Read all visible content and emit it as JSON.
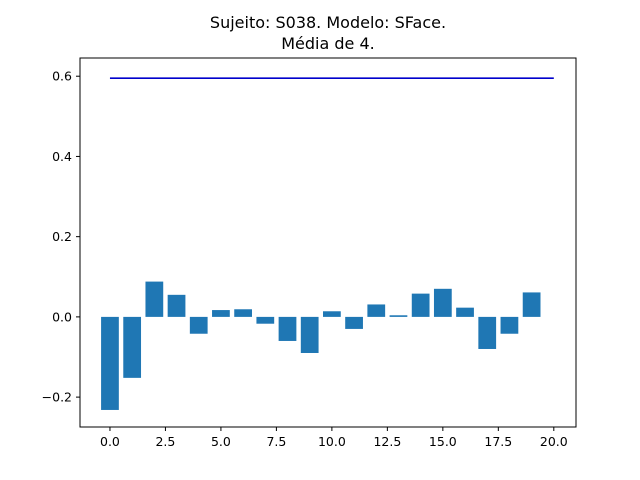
{
  "chart_data": {
    "type": "bar",
    "title_line1": "Sujeito: S038. Modelo: SFace.",
    "title_line2": "Média de 4.",
    "x": [
      0,
      1,
      2,
      3,
      4,
      5,
      6,
      7,
      8,
      9,
      10,
      11,
      12,
      13,
      14,
      15,
      16,
      17,
      18,
      19
    ],
    "values": [
      -0.232,
      -0.152,
      0.088,
      0.055,
      -0.042,
      0.017,
      0.019,
      -0.017,
      -0.06,
      -0.09,
      0.014,
      -0.03,
      0.031,
      0.004,
      0.058,
      0.07,
      0.023,
      -0.08,
      -0.042,
      0.061
    ],
    "bar_color": "#1f77b4",
    "reference_line": {
      "y": 0.595,
      "x_start": 0,
      "x_end": 20,
      "color": "#0000cc"
    },
    "xlim": [
      -1.35,
      21.0
    ],
    "ylim": [
      -0.2745,
      0.6454
    ],
    "xticks": [
      0.0,
      2.5,
      5.0,
      7.5,
      10.0,
      12.5,
      15.0,
      17.5,
      20.0
    ],
    "xtick_labels": [
      "0.0",
      "2.5",
      "5.0",
      "7.5",
      "10.0",
      "12.5",
      "15.0",
      "17.5",
      "20.0"
    ],
    "yticks": [
      -0.2,
      0.0,
      0.2,
      0.4,
      0.6
    ],
    "ytick_labels": [
      "−0.2",
      "0.0",
      "0.2",
      "0.4",
      "0.6"
    ],
    "xlabel": "",
    "ylabel": "",
    "grid": false
  }
}
